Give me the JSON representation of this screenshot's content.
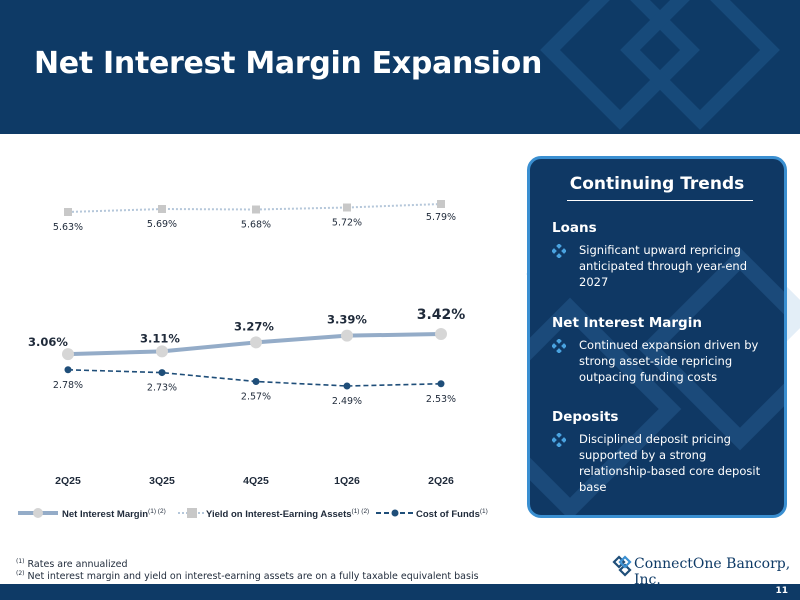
{
  "header": {
    "title": "Net Interest Margin Expansion"
  },
  "chart_data": {
    "type": "line",
    "categories": [
      "2Q25",
      "3Q25",
      "4Q25",
      "1Q26",
      "2Q26"
    ],
    "series": [
      {
        "name": "Net Interest Margin",
        "superscript": "(1) (2)",
        "values": [
          3.06,
          3.11,
          3.27,
          3.39,
          3.42
        ],
        "labels": [
          "3.06%",
          "3.11%",
          "3.27%",
          "3.39%",
          "3.42%"
        ],
        "color": "#94acc8"
      },
      {
        "name": "Yield on Interest-Earning Assets",
        "superscript": "(1) (2)",
        "values": [
          5.63,
          5.69,
          5.68,
          5.72,
          5.79
        ],
        "labels": [
          "5.63%",
          "5.69%",
          "5.68%",
          "5.72%",
          "5.79%"
        ],
        "color": "#b5c7da"
      },
      {
        "name": "Cost of Funds",
        "superscript": "(1)",
        "values": [
          2.78,
          2.73,
          2.57,
          2.49,
          2.53
        ],
        "labels": [
          "2.78%",
          "2.73%",
          "2.57%",
          "2.49%",
          "2.53%"
        ],
        "color": "#1f4e79"
      }
    ],
    "legend_position": "bottom",
    "grid": false
  },
  "panel": {
    "title": "Continuing Trends",
    "sections": [
      {
        "heading": "Loans",
        "bullet": "Significant upward repricing anticipated through year-end 2027"
      },
      {
        "heading": "Net Interest Margin",
        "bullet": "Continued expansion driven by strong asset-side repricing outpacing funding costs"
      },
      {
        "heading": "Deposits",
        "bullet": "Disciplined deposit pricing supported by a strong relationship-based core deposit base"
      }
    ]
  },
  "footnotes": [
    {
      "mark": "(1)",
      "text": "Rates are annualized"
    },
    {
      "mark": "(2)",
      "text": "Net interest margin and yield on interest-earning assets are on a fully taxable equivalent basis"
    }
  ],
  "logo": {
    "name": "ConnectOne Bancorp, Inc.",
    "icon": "connectone-logo-icon"
  },
  "page_number": "11",
  "colors": {
    "navy": "#0e3a66",
    "panel_border": "#3a8fd1"
  }
}
